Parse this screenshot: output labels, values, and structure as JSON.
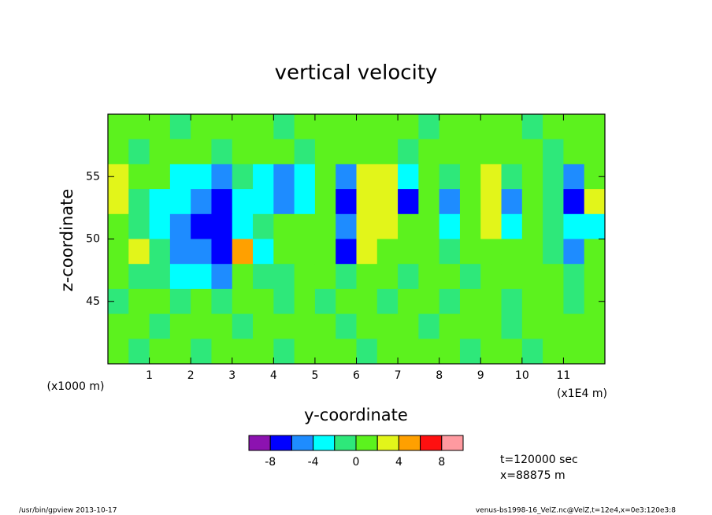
{
  "chart_data": {
    "type": "contour",
    "title": "vertical velocity",
    "xlabel": "y-coordinate",
    "ylabel": "z-coordinate",
    "x_unit": "(x1E4 m)",
    "y_unit": "(x1000 m)",
    "xlim": [
      0,
      12
    ],
    "ylim": [
      40,
      60
    ],
    "xticks": [
      1,
      2,
      3,
      4,
      5,
      6,
      7,
      8,
      9,
      10,
      11
    ],
    "yticks": [
      45,
      50,
      55
    ],
    "x": [
      0.25,
      0.75,
      1.25,
      1.75,
      2.25,
      2.75,
      3.25,
      3.75,
      4.25,
      4.75,
      5.25,
      5.75,
      6.25,
      6.75,
      7.25,
      7.75,
      8.25,
      8.75,
      9.25,
      9.75,
      10.25,
      10.75,
      11.25,
      11.75
    ],
    "y": [
      59,
      57,
      55,
      53,
      51,
      49,
      47,
      45,
      43,
      41
    ],
    "z": [
      [
        1,
        1,
        1,
        -1,
        1,
        1,
        1,
        1,
        -1,
        1,
        1,
        1,
        1,
        1,
        1,
        -1,
        1,
        1,
        1,
        1,
        -1,
        1,
        1,
        1
      ],
      [
        1,
        -1,
        1,
        1,
        1,
        -1,
        1,
        1,
        1,
        -1,
        1,
        1,
        1,
        1,
        -1,
        1,
        1,
        1,
        1,
        1,
        1,
        -1,
        1,
        1
      ],
      [
        3,
        1,
        1,
        -3,
        -3,
        -5,
        -1,
        -3,
        -5,
        -3,
        1,
        -5,
        3,
        3,
        -3,
        1,
        -1,
        1,
        3,
        -1,
        1,
        -1,
        -5,
        1
      ],
      [
        3,
        -1,
        -3,
        -3,
        -5,
        -7,
        -3,
        -3,
        -5,
        -3,
        1,
        -7,
        3,
        3,
        -7,
        1,
        -5,
        1,
        3,
        -5,
        1,
        -1,
        -7,
        3
      ],
      [
        1,
        -1,
        -3,
        -5,
        -7,
        -7,
        -3,
        -1,
        1,
        1,
        1,
        -5,
        3,
        3,
        1,
        1,
        -3,
        1,
        3,
        -3,
        1,
        -1,
        -3,
        -3
      ],
      [
        1,
        3,
        -1,
        -5,
        -5,
        -7,
        5,
        -3,
        1,
        1,
        1,
        -7,
        3,
        1,
        1,
        1,
        -1,
        1,
        1,
        1,
        1,
        -1,
        -5,
        1
      ],
      [
        1,
        -1,
        -1,
        -3,
        -3,
        -5,
        1,
        -1,
        -1,
        1,
        1,
        -1,
        1,
        1,
        -1,
        1,
        1,
        -1,
        1,
        1,
        1,
        1,
        -1,
        1
      ],
      [
        -1,
        1,
        1,
        -1,
        1,
        -1,
        1,
        1,
        -1,
        1,
        -1,
        1,
        1,
        -1,
        1,
        1,
        -1,
        1,
        1,
        -1,
        1,
        1,
        -1,
        1
      ],
      [
        1,
        1,
        -1,
        1,
        1,
        1,
        -1,
        1,
        1,
        1,
        1,
        -1,
        1,
        1,
        1,
        -1,
        1,
        1,
        1,
        -1,
        1,
        1,
        1,
        1
      ],
      [
        1,
        -1,
        1,
        1,
        -1,
        1,
        1,
        1,
        -1,
        1,
        1,
        1,
        -1,
        1,
        1,
        1,
        1,
        -1,
        1,
        1,
        -1,
        1,
        1,
        1
      ]
    ],
    "levels": [
      -10,
      -8,
      -6,
      -4,
      -2,
      0,
      2,
      4,
      6,
      8,
      10
    ],
    "colors": [
      "#8c12b0",
      "#0000ff",
      "#1e8cff",
      "#00ffff",
      "#2ee87a",
      "#5cf21e",
      "#e2f51a",
      "#ffa000",
      "#ff1010",
      "#ff9aa0"
    ],
    "colorbar_ticks": [
      -8,
      -4,
      0,
      4,
      8
    ],
    "annotations": [
      "t=120000 sec",
      "x=88875 m"
    ],
    "footer_left": "/usr/bin/gpview  2013-10-17",
    "footer_right": "venus-bs1998-16_VelZ.nc@VelZ,t=12e4,x=0e3:120e3:8"
  }
}
